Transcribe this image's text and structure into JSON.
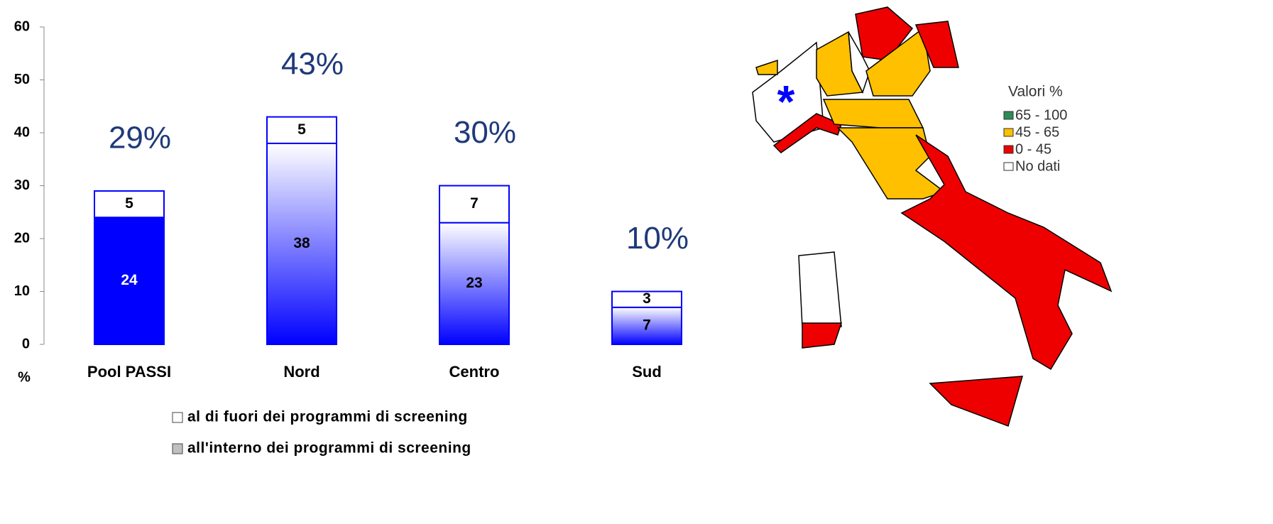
{
  "chart_data": {
    "type": "stacked-bar",
    "categories": [
      "Pool PASSI",
      "Nord",
      "Centro",
      "Sud"
    ],
    "series": [
      {
        "name": "all'interno dei programmi di screening",
        "color": "#0000ff",
        "legend_color": "#c0c0c0",
        "fill": [
          "solid",
          "gradient",
          "gradient",
          "gradient"
        ],
        "values": [
          24,
          38,
          23,
          7
        ]
      },
      {
        "name": "al di fuori dei programmi di screening",
        "color": "#ffffff",
        "legend_color": "#ffffff",
        "values": [
          5,
          5,
          7,
          3
        ]
      }
    ],
    "total_labels": [
      "29%",
      "43%",
      "30%",
      "10%"
    ],
    "y_label": "%",
    "ylim": [
      0,
      60
    ],
    "yticks": [
      0,
      10,
      20,
      30,
      40,
      50,
      60
    ]
  },
  "map": {
    "marker": "*",
    "legend_title": "Valori %",
    "legend": [
      {
        "label": "65 - 100",
        "color": "#2e8b57"
      },
      {
        "label": "45 - 65",
        "color": "#ffc000"
      },
      {
        "label": "0 - 45",
        "color": "#ee0000"
      },
      {
        "label": "No dati",
        "color": "#ffffff"
      }
    ]
  }
}
